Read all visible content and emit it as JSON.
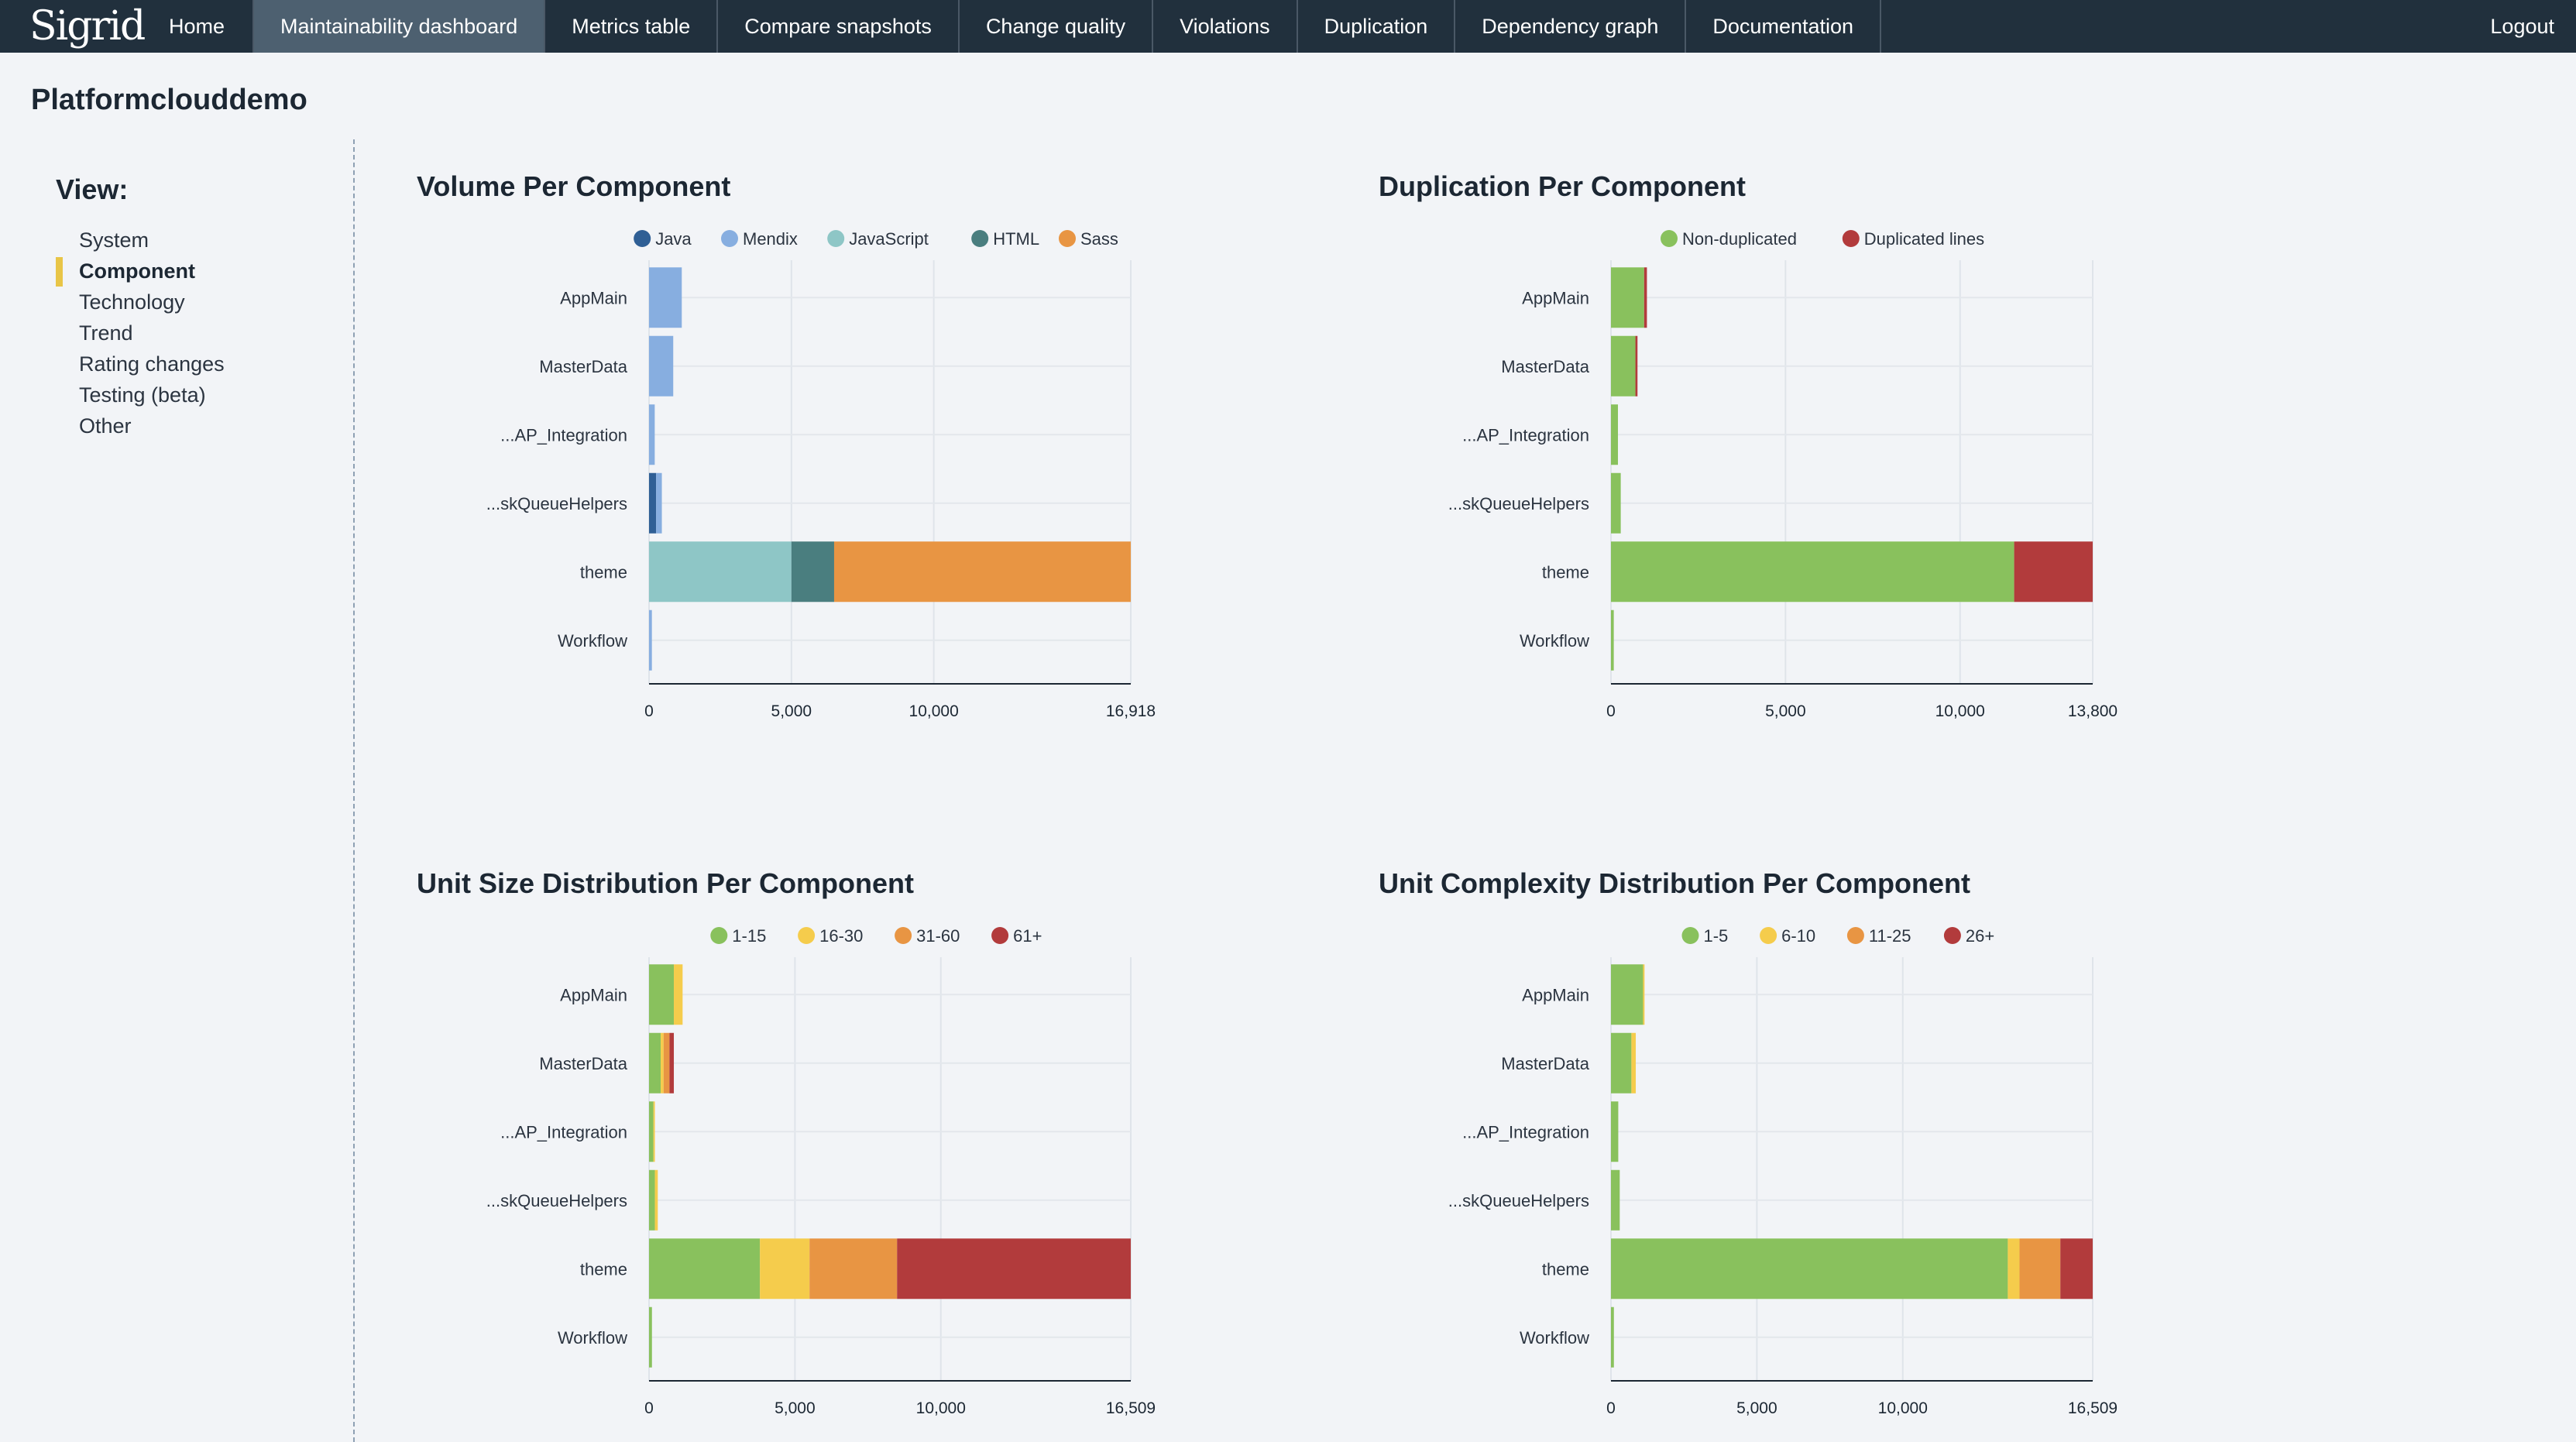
{
  "nav": {
    "logo": "Sigrid",
    "items": [
      "Home",
      "Maintainability dashboard",
      "Metrics table",
      "Compare snapshots",
      "Change quality",
      "Violations",
      "Duplication",
      "Dependency graph",
      "Documentation"
    ],
    "active": "Maintainability dashboard",
    "logout": "Logout"
  },
  "page": {
    "title": "Platformclouddemo"
  },
  "sidebar": {
    "view_label": "View:",
    "items": [
      "System",
      "Component",
      "Technology",
      "Trend",
      "Rating changes",
      "Testing (beta)",
      "Other"
    ],
    "active": "Component"
  },
  "colors": {
    "java": "#2f5f95",
    "mendix": "#87aee0",
    "javascript": "#8ec6c6",
    "html": "#4a7e7f",
    "sass": "#e89543",
    "green": "#89c15d",
    "yellow": "#f5cc4c",
    "orange": "#e89543",
    "red": "#b23b3c"
  },
  "chart_data": [
    {
      "type": "bar",
      "title": "Volume Per Component",
      "categories": [
        "AppMain",
        "MasterData",
        "...AP_Integration",
        "...skQueueHelpers",
        "theme",
        "Workflow"
      ],
      "series": [
        {
          "name": "Java",
          "color": "#2f5f95",
          "values": [
            0,
            0,
            0,
            250,
            0,
            0
          ]
        },
        {
          "name": "Mendix",
          "color": "#87aee0",
          "values": [
            1150,
            850,
            200,
            200,
            0,
            100
          ]
        },
        {
          "name": "JavaScript",
          "color": "#8ec6c6",
          "values": [
            0,
            0,
            0,
            0,
            5000,
            0
          ]
        },
        {
          "name": "HTML",
          "color": "#4a7e7f",
          "values": [
            0,
            0,
            0,
            0,
            1500,
            0
          ]
        },
        {
          "name": "Sass",
          "color": "#e89543",
          "values": [
            0,
            0,
            0,
            0,
            10418,
            0
          ]
        }
      ],
      "xticks": [
        "0",
        "5,000",
        "10,000",
        "16,918"
      ],
      "xlim": [
        0,
        16918
      ],
      "grid": true,
      "legend": "top"
    },
    {
      "type": "bar",
      "title": "Duplication Per Component",
      "categories": [
        "AppMain",
        "MasterData",
        "...AP_Integration",
        "...skQueueHelpers",
        "theme",
        "Workflow"
      ],
      "series": [
        {
          "name": "Non-duplicated",
          "color": "#89c15d",
          "values": [
            950,
            700,
            200,
            280,
            11550,
            80
          ]
        },
        {
          "name": "Duplicated lines",
          "color": "#b23b3c",
          "values": [
            80,
            60,
            0,
            0,
            2250,
            0
          ]
        }
      ],
      "xticks": [
        "0",
        "5,000",
        "10,000",
        "13,800"
      ],
      "xlim": [
        0,
        13800
      ],
      "grid": true,
      "legend": "top"
    },
    {
      "type": "bar",
      "title": "Unit Size Distribution Per Component",
      "categories": [
        "AppMain",
        "MasterData",
        "...AP_Integration",
        "...skQueueHelpers",
        "theme",
        "Workflow"
      ],
      "series": [
        {
          "name": "1-15",
          "color": "#89c15d",
          "values": [
            850,
            400,
            150,
            200,
            3800,
            100
          ]
        },
        {
          "name": "16-30",
          "color": "#f5cc4c",
          "values": [
            300,
            100,
            50,
            100,
            1700,
            0
          ]
        },
        {
          "name": "31-60",
          "color": "#e89543",
          "values": [
            0,
            200,
            0,
            0,
            3000,
            0
          ]
        },
        {
          "name": "61+",
          "color": "#b23b3c",
          "values": [
            0,
            150,
            0,
            0,
            8009,
            0
          ]
        }
      ],
      "xticks": [
        "0",
        "5,000",
        "10,000",
        "16,509"
      ],
      "xlim": [
        0,
        16509
      ],
      "grid": true,
      "legend": "top"
    },
    {
      "type": "bar",
      "title": "Unit Complexity Distribution Per Component",
      "categories": [
        "AppMain",
        "MasterData",
        "...AP_Integration",
        "...skQueueHelpers",
        "theme",
        "Workflow"
      ],
      "series": [
        {
          "name": "1-5",
          "color": "#89c15d",
          "values": [
            1100,
            700,
            250,
            300,
            13600,
            100
          ]
        },
        {
          "name": "6-10",
          "color": "#f5cc4c",
          "values": [
            50,
            150,
            0,
            0,
            400,
            0
          ]
        },
        {
          "name": "11-25",
          "color": "#e89543",
          "values": [
            0,
            0,
            0,
            0,
            1400,
            0
          ]
        },
        {
          "name": "26+",
          "color": "#b23b3c",
          "values": [
            0,
            0,
            0,
            0,
            1109,
            0
          ]
        }
      ],
      "xticks": [
        "0",
        "5,000",
        "10,000",
        "16,509"
      ],
      "xlim": [
        0,
        16509
      ],
      "grid": true,
      "legend": "top"
    }
  ]
}
